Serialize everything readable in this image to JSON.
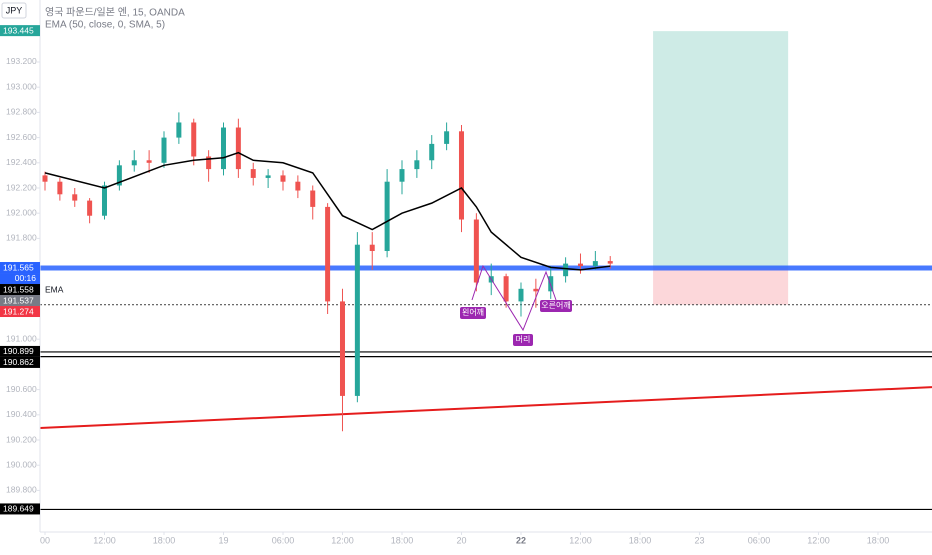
{
  "chart_data": {
    "type": "candlestick",
    "symbol": "JPY",
    "title": "영국 파운드/일본 엔, 15, OANDA",
    "indicator": "EMA (50, close, 0, SMA, 5)",
    "x": [
      0,
      0.25,
      0.5,
      0.75,
      1,
      1.25,
      1.5,
      1.75,
      2,
      2.25,
      2.5,
      2.75,
      3,
      3.25,
      3.5,
      3.75,
      4,
      4.25,
      4.5,
      4.75,
      5,
      5.25,
      5.5,
      5.75,
      6,
      6.25,
      6.5,
      6.75,
      7,
      7.25,
      7.5,
      7.75,
      8,
      8.25,
      8.5,
      8.75,
      9,
      9.25,
      9.5
    ],
    "open": [
      192.3,
      192.25,
      192.15,
      192.1,
      191.98,
      192.22,
      192.38,
      192.42,
      192.4,
      192.6,
      192.72,
      192.45,
      192.35,
      192.68,
      192.35,
      192.28,
      192.3,
      192.25,
      192.18,
      192.05,
      191.3,
      190.55,
      191.75,
      191.7,
      192.25,
      192.35,
      192.42,
      192.55,
      192.65,
      191.95,
      191.45,
      191.5,
      191.3,
      191.4,
      191.38,
      191.5,
      191.6,
      191.58,
      191.62
    ],
    "high": [
      192.33,
      192.28,
      192.2,
      192.12,
      192.25,
      192.42,
      192.5,
      192.5,
      192.65,
      192.8,
      192.75,
      192.5,
      192.72,
      192.75,
      192.4,
      192.35,
      192.34,
      192.3,
      192.22,
      192.08,
      191.4,
      191.85,
      191.85,
      192.35,
      192.42,
      192.5,
      192.62,
      192.72,
      192.7,
      192.0,
      191.6,
      191.52,
      191.45,
      191.48,
      191.58,
      191.65,
      191.68,
      191.7,
      191.66
    ],
    "low": [
      192.18,
      192.1,
      192.05,
      191.92,
      191.95,
      192.18,
      192.33,
      192.32,
      192.36,
      192.55,
      192.38,
      192.25,
      192.3,
      192.28,
      192.22,
      192.2,
      192.18,
      192.12,
      191.95,
      191.2,
      190.27,
      190.5,
      191.55,
      191.65,
      192.15,
      192.28,
      192.35,
      192.5,
      191.85,
      191.38,
      191.35,
      191.25,
      191.18,
      191.25,
      191.32,
      191.45,
      191.52,
      191.55,
      191.56
    ],
    "close": [
      192.25,
      192.15,
      192.1,
      191.98,
      192.22,
      192.38,
      192.42,
      192.4,
      192.6,
      192.72,
      192.45,
      192.35,
      192.68,
      192.35,
      192.28,
      192.3,
      192.25,
      192.18,
      192.05,
      191.3,
      190.55,
      191.75,
      191.7,
      192.25,
      192.35,
      192.42,
      192.55,
      192.65,
      191.95,
      191.45,
      191.5,
      191.3,
      191.4,
      191.38,
      191.5,
      191.6,
      191.58,
      191.62,
      191.6
    ],
    "up_color": "#26a69a",
    "down_color": "#ef5350",
    "ema": {
      "x": [
        0,
        1,
        2,
        2.5,
        3,
        3.25,
        3.5,
        4,
        4.5,
        5,
        5.5,
        6,
        6.5,
        7,
        7.25,
        7.5,
        8,
        8.5,
        9,
        9.5
      ],
      "values": [
        192.32,
        192.2,
        192.38,
        192.42,
        192.44,
        192.48,
        192.42,
        192.4,
        192.32,
        191.98,
        191.87,
        192.0,
        192.08,
        192.2,
        192.05,
        191.85,
        191.65,
        191.57,
        191.55,
        191.58
      ],
      "color": "#000000"
    },
    "xlim": [
      -0.084,
      14.908
    ],
    "xticks": [
      {
        "value": 0,
        "label": "00"
      },
      {
        "value": 1,
        "label": "12:00"
      },
      {
        "value": 2,
        "label": "18:00"
      },
      {
        "value": 3,
        "label": "19"
      },
      {
        "value": 4,
        "label": "06:00"
      },
      {
        "value": 5,
        "label": "12:00"
      },
      {
        "value": 6,
        "label": "18:00"
      },
      {
        "value": 7,
        "label": "20"
      },
      {
        "value": 8,
        "label": "22"
      },
      {
        "value": 9,
        "label": "12:00"
      },
      {
        "value": 10,
        "label": "18:00"
      },
      {
        "value": 11,
        "label": "23"
      },
      {
        "value": 12,
        "label": "06:00"
      },
      {
        "value": 13,
        "label": "12:00"
      },
      {
        "value": 14,
        "label": "18:00"
      }
    ],
    "ylim": [
      189.47,
      193.692
    ],
    "yticks": [
      {
        "value": 193.2,
        "label": "193.200"
      },
      {
        "value": 193.0,
        "label": "193.000"
      },
      {
        "value": 192.8,
        "label": "192.800"
      },
      {
        "value": 192.6,
        "label": "192.600"
      },
      {
        "value": 192.4,
        "label": "192.400"
      },
      {
        "value": 192.2,
        "label": "192.200"
      },
      {
        "value": 192.0,
        "label": "192.000"
      },
      {
        "value": 191.8,
        "label": "191.800"
      },
      {
        "value": 191.0,
        "label": "191.000"
      },
      {
        "value": 190.6,
        "label": "190.600"
      },
      {
        "value": 190.4,
        "label": "190.400"
      },
      {
        "value": 190.2,
        "label": "190.200"
      },
      {
        "value": 190.0,
        "label": "190.000"
      },
      {
        "value": 189.8,
        "label": "189.800"
      }
    ],
    "levels": [
      {
        "value": 191.565,
        "color": "#2962ff"
      },
      {
        "value": 191.274,
        "color": "#555555"
      },
      {
        "value": 190.899,
        "color": "#000000"
      },
      {
        "value": 190.862,
        "color": "#000000"
      },
      {
        "value": 189.649,
        "color": "#000000"
      }
    ],
    "price_labels": [
      {
        "value": 193.445,
        "color": "#26a69a"
      },
      {
        "value": 191.565,
        "color": "#2962ff",
        "tag": "00:16"
      },
      {
        "value": 191.558,
        "color": "#000000",
        "tag": "EMA"
      },
      {
        "value": 191.537,
        "color": "#787b86"
      },
      {
        "value": 191.274,
        "color": "#f23645"
      },
      {
        "value": 190.899,
        "color": "#000000"
      },
      {
        "value": 190.862,
        "color": "#000000"
      },
      {
        "value": 189.649,
        "color": "#000000"
      }
    ],
    "trendline": {
      "x": [
        -0.084,
        14.908
      ],
      "values": [
        190.295,
        190.62
      ],
      "color": "#e51c1c"
    },
    "position": {
      "x": [
        10.22,
        12.49
      ],
      "entry": 191.565,
      "target": 193.445,
      "stop": 191.274
    },
    "annotations": [
      "왼어깨",
      "머리",
      "오른어깨"
    ]
  }
}
